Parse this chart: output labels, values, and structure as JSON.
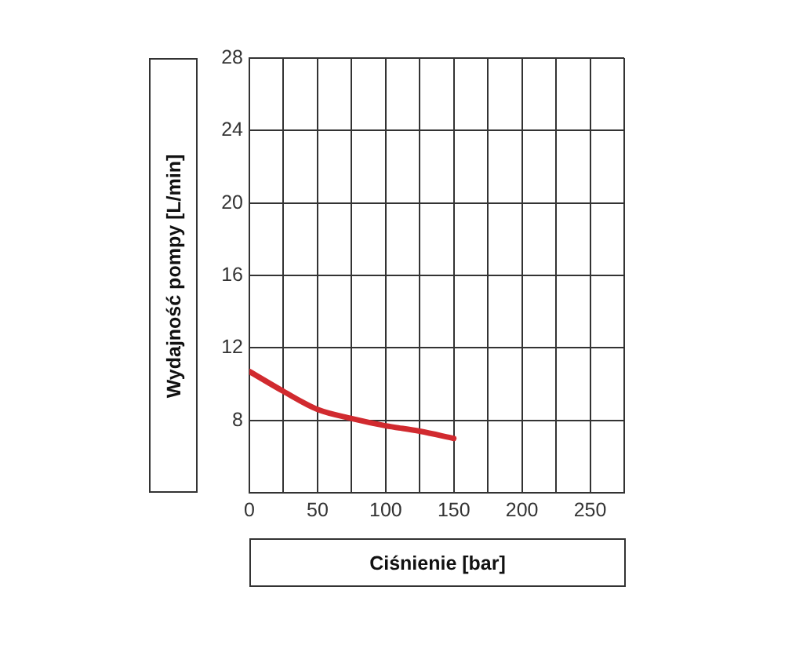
{
  "chart_data": {
    "type": "line",
    "xlabel": "Ciśnienie [bar]",
    "ylabel": "Wydajność pompy [L/min]",
    "x": [
      0,
      25,
      50,
      75,
      100,
      125,
      150
    ],
    "values": [
      10.7,
      9.6,
      8.6,
      8.1,
      7.7,
      7.4,
      7.0
    ],
    "color": "#d12a2f",
    "xlim": [
      0,
      275
    ],
    "ylim": [
      4,
      28
    ],
    "xticks": [
      0,
      {
        "value": 25,
        "label": null
      },
      50,
      {
        "value": 75,
        "label": null
      },
      100,
      {
        "value": 125,
        "label": null
      },
      150,
      {
        "value": 175,
        "label": null
      },
      200,
      {
        "value": 225,
        "label": null
      },
      250,
      {
        "value": 275,
        "label": null
      }
    ],
    "yticks": [
      {
        "value": 4,
        "label": null
      },
      8,
      12,
      16,
      20,
      24,
      28
    ],
    "grid": true
  }
}
